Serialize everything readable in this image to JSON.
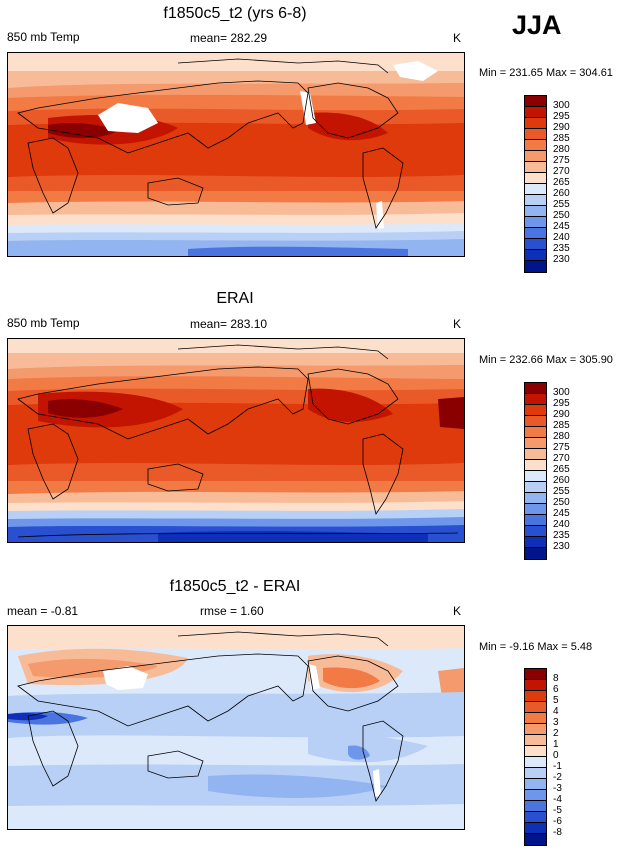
{
  "season": "JJA",
  "panels": [
    {
      "id": "model",
      "title": "f1850c5_t2 (yrs 6-8)",
      "left_label": "850 mb Temp",
      "center_label": "mean= 282.29",
      "right_label": "K",
      "minmax": "Min = 231.65 Max = 304.61",
      "colorbar_labels": [
        "300",
        "295",
        "290",
        "285",
        "280",
        "275",
        "270",
        "265",
        "260",
        "255",
        "250",
        "245",
        "240",
        "235",
        "230"
      ],
      "colorbar_colors": [
        "#8a0000",
        "#c21400",
        "#de3a0c",
        "#ea5a28",
        "#f17a45",
        "#f59a6c",
        "#f8bb98",
        "#fde0cc",
        "#dce9fb",
        "#b8d0f6",
        "#92b4f0",
        "#6e96ea",
        "#4a74e0",
        "#2850d0",
        "#0e2fb8",
        "#00148c"
      ],
      "chart_data": {
        "type": "heatmap",
        "title": "f1850c5_t2 (yrs 6-8)",
        "variable": "850 mb Temp",
        "units": "K",
        "mean": 282.29,
        "min": 231.65,
        "max": 304.61,
        "levels": [
          230,
          235,
          240,
          245,
          250,
          255,
          260,
          265,
          270,
          275,
          280,
          285,
          290,
          295,
          300
        ],
        "lat_band_values": [
          {
            "lat": 80,
            "value": 276
          },
          {
            "lat": 60,
            "value": 282
          },
          {
            "lat": 40,
            "value": 292
          },
          {
            "lat": 20,
            "value": 292
          },
          {
            "lat": 0,
            "value": 291
          },
          {
            "lat": -20,
            "value": 286
          },
          {
            "lat": -40,
            "value": 276
          },
          {
            "lat": -55,
            "value": 267
          },
          {
            "lat": -65,
            "value": 258
          },
          {
            "lat": -80,
            "value": 242
          }
        ]
      }
    },
    {
      "id": "obs",
      "title": "ERAI",
      "left_label": "850 mb Temp",
      "center_label": "mean= 283.10",
      "right_label": "K",
      "minmax": "Min = 232.66 Max = 305.90",
      "colorbar_labels": [
        "300",
        "295",
        "290",
        "285",
        "280",
        "275",
        "270",
        "265",
        "260",
        "255",
        "250",
        "245",
        "240",
        "235",
        "230"
      ],
      "colorbar_colors": [
        "#8a0000",
        "#c21400",
        "#de3a0c",
        "#ea5a28",
        "#f17a45",
        "#f59a6c",
        "#f8bb98",
        "#fde0cc",
        "#dce9fb",
        "#b8d0f6",
        "#92b4f0",
        "#6e96ea",
        "#4a74e0",
        "#2850d0",
        "#0e2fb8",
        "#00148c"
      ],
      "chart_data": {
        "type": "heatmap",
        "title": "ERAI",
        "variable": "850 mb Temp",
        "units": "K",
        "mean": 283.1,
        "min": 232.66,
        "max": 305.9,
        "levels": [
          230,
          235,
          240,
          245,
          250,
          255,
          260,
          265,
          270,
          275,
          280,
          285,
          290,
          295,
          300
        ],
        "lat_band_values": [
          {
            "lat": 80,
            "value": 277
          },
          {
            "lat": 60,
            "value": 283
          },
          {
            "lat": 40,
            "value": 293
          },
          {
            "lat": 20,
            "value": 293
          },
          {
            "lat": 0,
            "value": 292
          },
          {
            "lat": -20,
            "value": 287
          },
          {
            "lat": -40,
            "value": 277
          },
          {
            "lat": -55,
            "value": 268
          },
          {
            "lat": -65,
            "value": 259
          },
          {
            "lat": -80,
            "value": 243
          }
        ]
      }
    },
    {
      "id": "diff",
      "title": "f1850c5_t2 - ERAI",
      "left_label": "mean =  -0.81",
      "center_label": "rmse =   1.60",
      "right_label": "K",
      "minmax": "Min =  -9.16 Max =   5.48",
      "colorbar_labels": [
        "8",
        "6",
        "5",
        "4",
        "3",
        "2",
        "1",
        "0",
        "-1",
        "-2",
        "-3",
        "-4",
        "-5",
        "-6",
        "-8"
      ],
      "colorbar_colors": [
        "#8a0000",
        "#c21400",
        "#de3a0c",
        "#ea5a28",
        "#f17a45",
        "#f59a6c",
        "#f8bb98",
        "#fde0cc",
        "#dce9fb",
        "#b8d0f6",
        "#92b4f0",
        "#6e96ea",
        "#4a74e0",
        "#2850d0",
        "#0e2fb8",
        "#00148c"
      ],
      "chart_data": {
        "type": "heatmap",
        "title": "f1850c5_t2 - ERAI",
        "units": "K",
        "mean": -0.81,
        "rmse": 1.6,
        "min": -9.16,
        "max": 5.48,
        "levels": [
          -8,
          -6,
          -5,
          -4,
          -3,
          -2,
          -1,
          0,
          1,
          2,
          3,
          4,
          5,
          6,
          8
        ],
        "lat_band_values": [
          {
            "lat": 80,
            "value": 1
          },
          {
            "lat": 60,
            "value": -0.5
          },
          {
            "lat": 40,
            "value": 0.5
          },
          {
            "lat": 20,
            "value": -1.5
          },
          {
            "lat": 0,
            "value": -1.5
          },
          {
            "lat": -20,
            "value": -1
          },
          {
            "lat": -40,
            "value": -1
          },
          {
            "lat": -55,
            "value": -1.5
          },
          {
            "lat": -65,
            "value": -1.5
          },
          {
            "lat": -80,
            "value": -1
          }
        ]
      }
    }
  ]
}
